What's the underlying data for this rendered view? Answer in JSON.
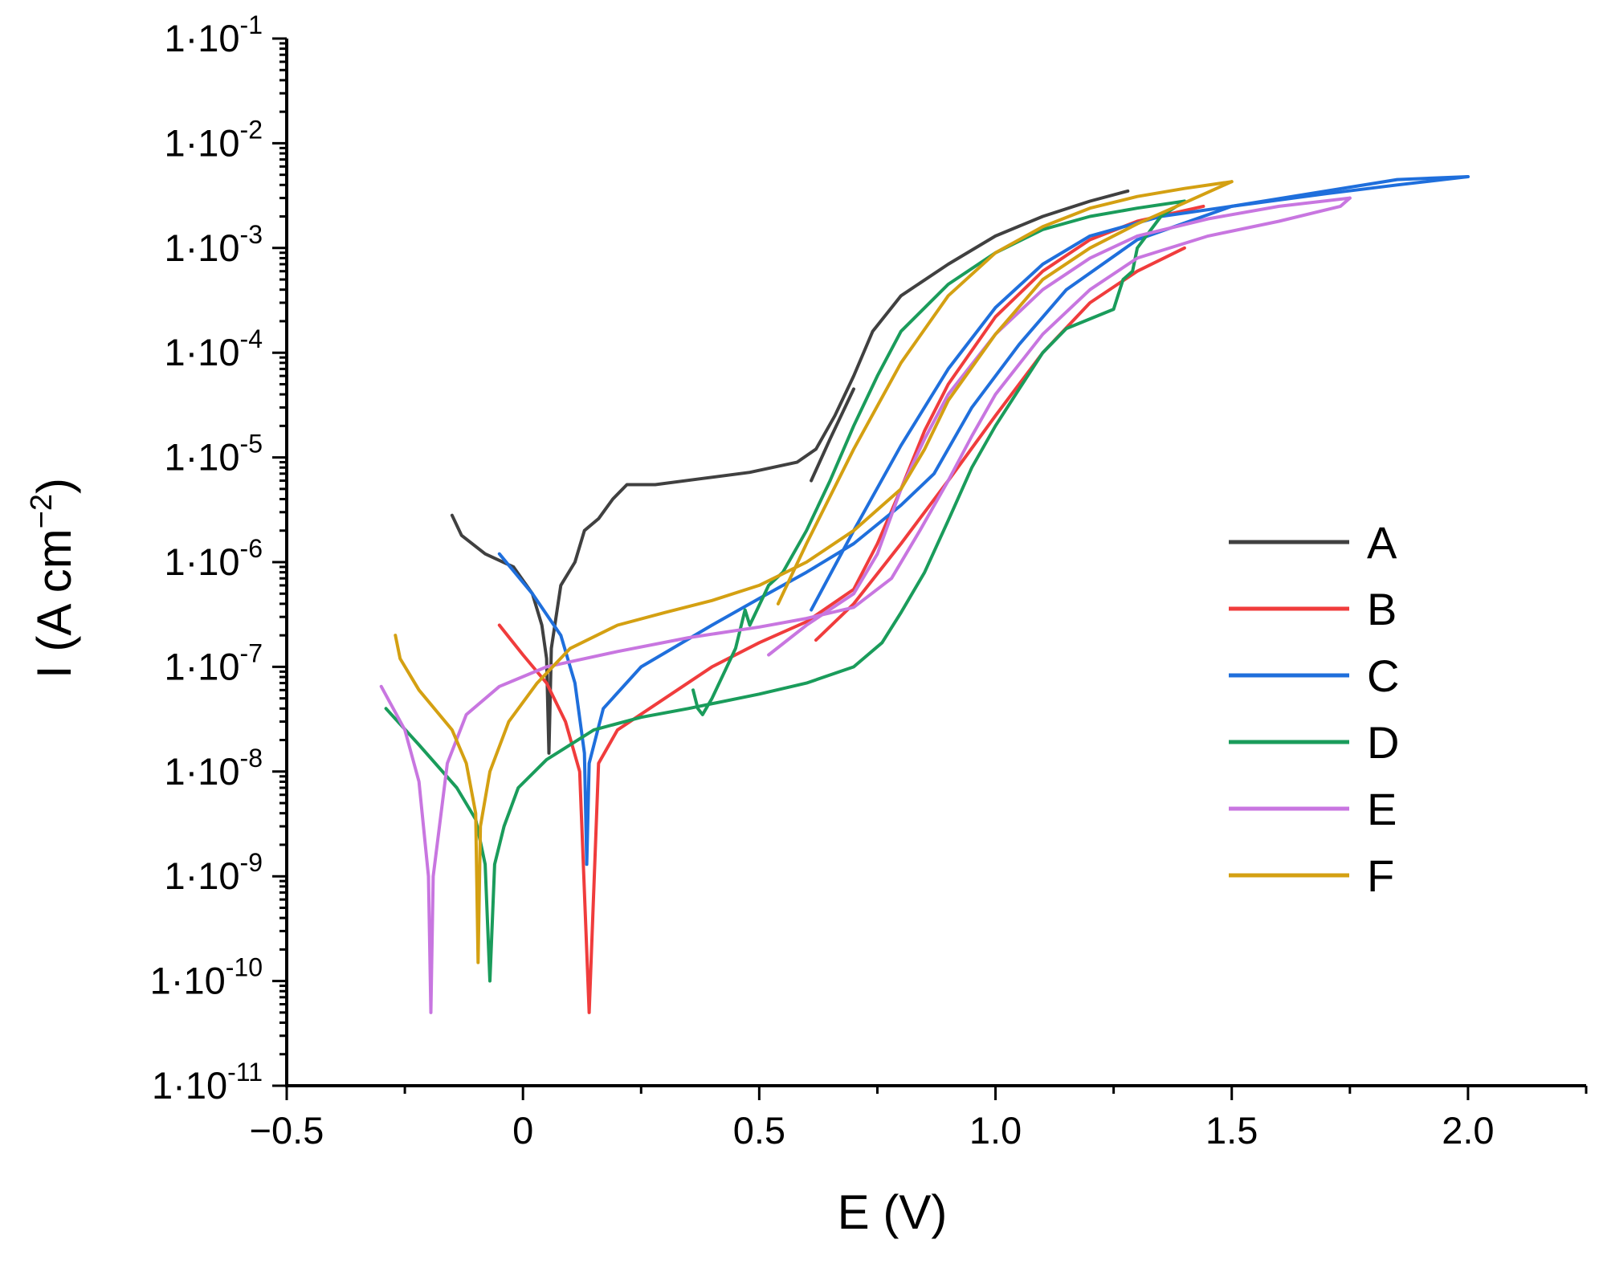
{
  "chart_data": {
    "type": "line",
    "title": "",
    "xlabel": "E (V)",
    "ylabel_parts": {
      "main": "I (A cm",
      "exp": "−2",
      "close": ")"
    },
    "x_scale": "linear",
    "y_scale": "log",
    "xlim": [
      -0.5,
      2.25
    ],
    "ylim": [
      1e-11,
      0.1
    ],
    "x_ticks": [
      -0.5,
      0,
      0.5,
      1.0,
      1.5,
      2.0
    ],
    "x_tick_labels": [
      "−0.5",
      "0",
      "0.5",
      "1.0",
      "1.5",
      "2.0"
    ],
    "x_minor_ticks": [
      -0.25,
      0.25,
      0.75,
      1.25,
      1.75,
      2.25
    ],
    "y_ticks": [
      {
        "value": 0.1,
        "mantissa": "1·10",
        "exp": "-1"
      },
      {
        "value": 0.01,
        "mantissa": "1·10",
        "exp": "-2"
      },
      {
        "value": 0.001,
        "mantissa": "1·10",
        "exp": "-3"
      },
      {
        "value": 0.0001,
        "mantissa": "1·10",
        "exp": "-4"
      },
      {
        "value": 1e-05,
        "mantissa": "1·10",
        "exp": "-5"
      },
      {
        "value": 1e-06,
        "mantissa": "1·10",
        "exp": "-6"
      },
      {
        "value": 1e-07,
        "mantissa": "1·10",
        "exp": "-7"
      },
      {
        "value": 1e-08,
        "mantissa": "1·10",
        "exp": "-8"
      },
      {
        "value": 1e-09,
        "mantissa": "1·10",
        "exp": "-9"
      },
      {
        "value": 1e-10,
        "mantissa": "1·10",
        "exp": "-10"
      },
      {
        "value": 1e-11,
        "mantissa": "1·10",
        "exp": "-11"
      }
    ],
    "legend_position": "center-right",
    "series": [
      {
        "name": "A",
        "color": "#404040",
        "points": [
          [
            -0.15,
            2.8e-06
          ],
          [
            -0.13,
            1.8e-06
          ],
          [
            -0.08,
            1.2e-06
          ],
          [
            -0.02,
            9e-07
          ],
          [
            0.02,
            5e-07
          ],
          [
            0.04,
            2.5e-07
          ],
          [
            0.05,
            1.2e-07
          ],
          [
            0.055,
            1.5e-08
          ],
          [
            0.06,
            1.5e-07
          ],
          [
            0.07,
            3e-07
          ],
          [
            0.08,
            6e-07
          ],
          [
            0.11,
            1e-06
          ],
          [
            0.13,
            2e-06
          ],
          [
            0.16,
            2.6e-06
          ],
          [
            0.19,
            4e-06
          ],
          [
            0.22,
            5.5e-06
          ],
          [
            0.28,
            5.5e-06
          ],
          [
            0.38,
            6.3e-06
          ],
          [
            0.48,
            7.2e-06
          ],
          [
            0.58,
            9e-06
          ],
          [
            0.62,
            1.2e-05
          ],
          [
            0.66,
            2.5e-05
          ],
          [
            0.7,
            6e-05
          ],
          [
            0.74,
            0.00016
          ],
          [
            0.8,
            0.00035
          ],
          [
            0.9,
            0.0007
          ],
          [
            1.0,
            0.0013
          ],
          [
            1.1,
            0.002
          ],
          [
            1.2,
            0.0028
          ],
          [
            1.28,
            0.0035
          ]
        ]
      },
      {
        "name": "A-reverse",
        "color": "#404040",
        "points": [
          [
            0.61,
            6e-06
          ],
          [
            0.65,
            1.5e-05
          ],
          [
            0.7,
            4.5e-05
          ]
        ]
      },
      {
        "name": "B",
        "color": "#f03c3c",
        "points": [
          [
            -0.05,
            2.5e-07
          ],
          [
            0.0,
            1.3e-07
          ],
          [
            0.05,
            7e-08
          ],
          [
            0.09,
            3e-08
          ],
          [
            0.12,
            1e-08
          ],
          [
            0.14,
            5e-11
          ],
          [
            0.16,
            1.2e-08
          ],
          [
            0.2,
            2.5e-08
          ],
          [
            0.3,
            5e-08
          ],
          [
            0.4,
            1e-07
          ],
          [
            0.5,
            1.7e-07
          ],
          [
            0.6,
            2.7e-07
          ],
          [
            0.7,
            5.5e-07
          ],
          [
            0.75,
            1.5e-06
          ],
          [
            0.8,
            5e-06
          ],
          [
            0.85,
            1.8e-05
          ],
          [
            0.9,
            5e-05
          ],
          [
            1.0,
            0.00022
          ],
          [
            1.1,
            0.0006
          ],
          [
            1.2,
            0.0012
          ],
          [
            1.3,
            0.0018
          ],
          [
            1.44,
            0.0025
          ]
        ]
      },
      {
        "name": "B-reverse",
        "color": "#f03c3c",
        "points": [
          [
            0.62,
            1.8e-07
          ],
          [
            0.7,
            4e-07
          ],
          [
            0.8,
            1.5e-06
          ],
          [
            0.9,
            6e-06
          ],
          [
            1.0,
            2.5e-05
          ],
          [
            1.1,
            0.0001
          ],
          [
            1.2,
            0.0003
          ],
          [
            1.3,
            0.0006
          ],
          [
            1.4,
            0.001
          ]
        ]
      },
      {
        "name": "C",
        "color": "#1f6fdc",
        "points": [
          [
            -0.05,
            1.2e-06
          ],
          [
            0.02,
            5e-07
          ],
          [
            0.08,
            2e-07
          ],
          [
            0.11,
            7e-08
          ],
          [
            0.13,
            1.5e-08
          ],
          [
            0.135,
            1.3e-09
          ],
          [
            0.14,
            1.2e-08
          ],
          [
            0.17,
            4e-08
          ],
          [
            0.25,
            1e-07
          ],
          [
            0.4,
            2.5e-07
          ],
          [
            0.5,
            4.5e-07
          ],
          [
            0.6,
            8e-07
          ],
          [
            0.7,
            1.5e-06
          ],
          [
            0.8,
            3.5e-06
          ],
          [
            0.87,
            7e-06
          ],
          [
            0.95,
            3e-05
          ],
          [
            1.05,
            0.00012
          ],
          [
            1.15,
            0.0004
          ],
          [
            1.3,
            0.0012
          ],
          [
            1.5,
            0.0025
          ],
          [
            1.7,
            0.0035
          ],
          [
            1.85,
            0.0045
          ],
          [
            2.0,
            0.0048
          ]
        ]
      },
      {
        "name": "C-reverse",
        "color": "#1f6fdc",
        "points": [
          [
            0.61,
            3.5e-07
          ],
          [
            0.7,
            2e-06
          ],
          [
            0.8,
            1.3e-05
          ],
          [
            0.9,
            7e-05
          ],
          [
            1.0,
            0.00027
          ],
          [
            1.1,
            0.0007
          ],
          [
            1.2,
            0.0013
          ],
          [
            1.35,
            0.002
          ],
          [
            1.5,
            0.0025
          ],
          [
            1.7,
            0.0033
          ],
          [
            1.85,
            0.004
          ],
          [
            2.0,
            0.0048
          ]
        ]
      },
      {
        "name": "D",
        "color": "#1a9c5b",
        "points": [
          [
            -0.29,
            4e-08
          ],
          [
            -0.22,
            1.8e-08
          ],
          [
            -0.14,
            7e-09
          ],
          [
            -0.1,
            3.5e-09
          ],
          [
            -0.08,
            1.3e-09
          ],
          [
            -0.07,
            1e-10
          ],
          [
            -0.06,
            1.3e-09
          ],
          [
            -0.04,
            3e-09
          ],
          [
            -0.01,
            7e-09
          ],
          [
            0.05,
            1.3e-08
          ],
          [
            0.15,
            2.5e-08
          ],
          [
            0.25,
            3.3e-08
          ],
          [
            0.35,
            4e-08
          ],
          [
            0.5,
            5.5e-08
          ],
          [
            0.6,
            7e-08
          ],
          [
            0.7,
            1e-07
          ],
          [
            0.76,
            1.7e-07
          ],
          [
            0.8,
            3.3e-07
          ],
          [
            0.85,
            8e-07
          ],
          [
            0.9,
            2.5e-06
          ],
          [
            0.95,
            8e-06
          ],
          [
            1.0,
            2e-05
          ],
          [
            1.05,
            4.5e-05
          ],
          [
            1.1,
            0.0001
          ],
          [
            1.15,
            0.00017
          ],
          [
            1.25,
            0.00026
          ],
          [
            1.27,
            0.0005
          ],
          [
            1.29,
            0.0006
          ],
          [
            1.3,
            0.001
          ],
          [
            1.35,
            0.002
          ],
          [
            1.4,
            0.0028
          ]
        ]
      },
      {
        "name": "D-reverse",
        "color": "#1a9c5b",
        "points": [
          [
            0.36,
            6e-08
          ],
          [
            0.37,
            4e-08
          ],
          [
            0.38,
            3.5e-08
          ],
          [
            0.4,
            5e-08
          ],
          [
            0.45,
            1.5e-07
          ],
          [
            0.47,
            3.5e-07
          ],
          [
            0.48,
            2.5e-07
          ],
          [
            0.52,
            6e-07
          ],
          [
            0.55,
            8e-07
          ],
          [
            0.6,
            2e-06
          ],
          [
            0.65,
            6e-06
          ],
          [
            0.7,
            2e-05
          ],
          [
            0.75,
            6e-05
          ],
          [
            0.8,
            0.00016
          ],
          [
            0.9,
            0.00045
          ],
          [
            1.0,
            0.0009
          ],
          [
            1.1,
            0.0015
          ],
          [
            1.2,
            0.002
          ],
          [
            1.3,
            0.0024
          ],
          [
            1.4,
            0.0028
          ]
        ]
      },
      {
        "name": "E",
        "color": "#c876e0",
        "points": [
          [
            -0.3,
            6.5e-08
          ],
          [
            -0.25,
            2.5e-08
          ],
          [
            -0.22,
            8e-09
          ],
          [
            -0.2,
            1e-09
          ],
          [
            -0.195,
            5e-11
          ],
          [
            -0.19,
            1e-09
          ],
          [
            -0.16,
            1.2e-08
          ],
          [
            -0.12,
            3.5e-08
          ],
          [
            -0.05,
            6.5e-08
          ],
          [
            0.05,
            1e-07
          ],
          [
            0.2,
            1.4e-07
          ],
          [
            0.35,
            1.9e-07
          ],
          [
            0.5,
            2.4e-07
          ],
          [
            0.6,
            2.9e-07
          ],
          [
            0.7,
            3.7e-07
          ],
          [
            0.78,
            7e-07
          ],
          [
            0.84,
            2e-06
          ],
          [
            0.9,
            6e-06
          ],
          [
            0.95,
            1.6e-05
          ],
          [
            1.0,
            4e-05
          ],
          [
            1.1,
            0.00015
          ],
          [
            1.2,
            0.0004
          ],
          [
            1.3,
            0.0008
          ],
          [
            1.45,
            0.0013
          ],
          [
            1.6,
            0.0018
          ],
          [
            1.73,
            0.0025
          ],
          [
            1.75,
            0.003
          ]
        ]
      },
      {
        "name": "E-reverse",
        "color": "#c876e0",
        "points": [
          [
            0.52,
            1.3e-07
          ],
          [
            0.6,
            2.5e-07
          ],
          [
            0.7,
            5e-07
          ],
          [
            0.75,
            1.2e-06
          ],
          [
            0.8,
            5e-06
          ],
          [
            0.85,
            1.5e-05
          ],
          [
            0.9,
            4e-05
          ],
          [
            1.0,
            0.00015
          ],
          [
            1.1,
            0.0004
          ],
          [
            1.2,
            0.0008
          ],
          [
            1.3,
            0.0013
          ],
          [
            1.45,
            0.0019
          ],
          [
            1.6,
            0.0025
          ],
          [
            1.75,
            0.003
          ]
        ]
      },
      {
        "name": "F",
        "color": "#d4a012",
        "points": [
          [
            -0.27,
            2e-07
          ],
          [
            -0.26,
            1.2e-07
          ],
          [
            -0.22,
            6e-08
          ],
          [
            -0.15,
            2.5e-08
          ],
          [
            -0.12,
            1.2e-08
          ],
          [
            -0.1,
            4e-09
          ],
          [
            -0.095,
            1.5e-10
          ],
          [
            -0.09,
            3e-09
          ],
          [
            -0.07,
            1e-08
          ],
          [
            -0.03,
            3e-08
          ],
          [
            0.03,
            7e-08
          ],
          [
            0.1,
            1.5e-07
          ],
          [
            0.2,
            2.5e-07
          ],
          [
            0.3,
            3.3e-07
          ],
          [
            0.4,
            4.3e-07
          ],
          [
            0.5,
            6e-07
          ],
          [
            0.6,
            1e-06
          ],
          [
            0.7,
            2e-06
          ],
          [
            0.8,
            5e-06
          ],
          [
            0.85,
            1.2e-05
          ],
          [
            0.9,
            3.5e-05
          ],
          [
            1.0,
            0.00015
          ],
          [
            1.1,
            0.0005
          ],
          [
            1.2,
            0.001
          ],
          [
            1.3,
            0.0017
          ],
          [
            1.4,
            0.0027
          ],
          [
            1.5,
            0.0043
          ]
        ]
      },
      {
        "name": "F-reverse",
        "color": "#d4a012",
        "points": [
          [
            0.54,
            4e-07
          ],
          [
            0.6,
            1.5e-06
          ],
          [
            0.7,
            1.2e-05
          ],
          [
            0.8,
            8e-05
          ],
          [
            0.9,
            0.00035
          ],
          [
            1.0,
            0.0009
          ],
          [
            1.1,
            0.0016
          ],
          [
            1.2,
            0.0024
          ],
          [
            1.3,
            0.0031
          ],
          [
            1.4,
            0.0037
          ],
          [
            1.5,
            0.0043
          ]
        ]
      }
    ],
    "legend": [
      {
        "label": "A",
        "color": "#404040"
      },
      {
        "label": "B",
        "color": "#f03c3c"
      },
      {
        "label": "C",
        "color": "#1f6fdc"
      },
      {
        "label": "D",
        "color": "#1a9c5b"
      },
      {
        "label": "E",
        "color": "#c876e0"
      },
      {
        "label": "F",
        "color": "#d4a012"
      }
    ]
  }
}
